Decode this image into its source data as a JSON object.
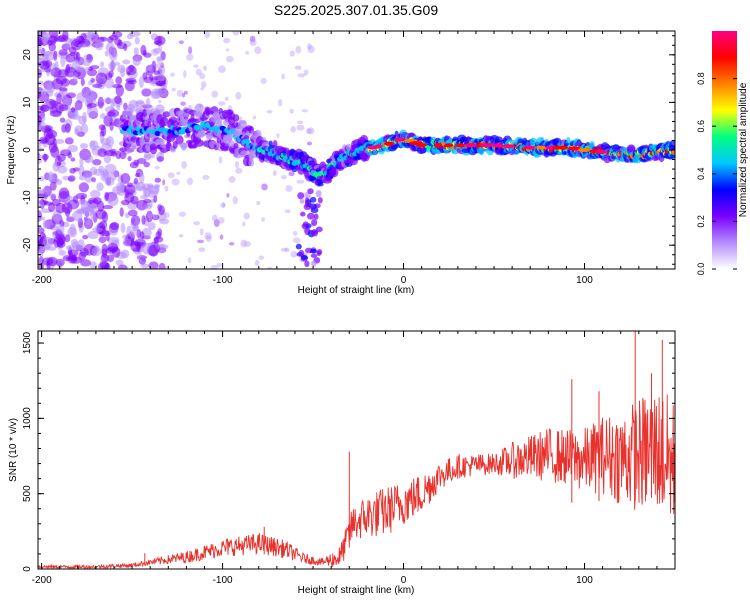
{
  "page": {
    "title": "S225.2025.307.01.35.G09"
  },
  "chart_data": [
    {
      "type": "heatmap",
      "xlabel": "Height of straight line (km)",
      "ylabel": "Frequency (Hz)",
      "xlim": [
        -202,
        150
      ],
      "ylim": [
        -25,
        25
      ],
      "xticks": [
        -200,
        -100,
        0,
        100
      ],
      "yticks": [
        -20,
        -10,
        0,
        10,
        20
      ],
      "colorbar": {
        "label": "Normalized spectral amplitude",
        "range": [
          0,
          1
        ],
        "ticks": [
          "0.0",
          "0.2",
          "0.4",
          "0.6",
          "0.8"
        ],
        "colors": [
          "#ffffff",
          "#b48cff",
          "#7a00ff",
          "#0000ff",
          "#00c8ff",
          "#00ff80",
          "#ffff00",
          "#ff8000",
          "#ff0000",
          "#ff0080"
        ]
      },
      "ridge": {
        "description": "dominant frequency track",
        "points": [
          [
            -150,
            4
          ],
          [
            -130,
            4
          ],
          [
            -110,
            5
          ],
          [
            -95,
            4
          ],
          [
            -85,
            1
          ],
          [
            -70,
            -1
          ],
          [
            -55,
            -3
          ],
          [
            -45,
            -5.5
          ],
          [
            -35,
            -2
          ],
          [
            -25,
            0
          ],
          [
            -10,
            1
          ],
          [
            0,
            2.5
          ],
          [
            10,
            1
          ],
          [
            30,
            1
          ],
          [
            50,
            1
          ],
          [
            70,
            0.5
          ],
          [
            90,
            0.5
          ],
          [
            110,
            -0.5
          ],
          [
            130,
            -1
          ],
          [
            150,
            0
          ]
        ]
      }
    },
    {
      "type": "line",
      "xlabel": "Height of straight line (km)",
      "ylabel": "SNR (10 * v/v)",
      "xlim": [
        -202,
        150
      ],
      "ylim": [
        0,
        1580
      ],
      "xticks": [
        -200,
        -100,
        0,
        100
      ],
      "yticks": [
        0,
        500,
        1000,
        1500
      ],
      "color": "#e8322d",
      "envelope": {
        "x": [
          -202,
          -170,
          -150,
          -140,
          -120,
          -100,
          -80,
          -65,
          -55,
          -45,
          -35,
          -28,
          -20,
          -10,
          0,
          10,
          20,
          30,
          50,
          60,
          70,
          80,
          90,
          100,
          110,
          120,
          130,
          140,
          150
        ],
        "mid": [
          15,
          15,
          25,
          45,
          80,
          140,
          170,
          130,
          70,
          45,
          80,
          300,
          350,
          380,
          440,
          500,
          620,
          680,
          700,
          720,
          740,
          760,
          740,
          720,
          760,
          740,
          760,
          800,
          680
        ],
        "amp": [
          10,
          12,
          15,
          20,
          40,
          60,
          70,
          60,
          35,
          25,
          80,
          120,
          150,
          170,
          150,
          140,
          100,
          80,
          70,
          120,
          150,
          180,
          190,
          220,
          260,
          320,
          380,
          420,
          450
        ]
      },
      "peaks": [
        {
          "x": -143,
          "y": 105
        },
        {
          "x": -77,
          "y": 280
        },
        {
          "x": -30,
          "y": 780
        },
        {
          "x": 93,
          "y": 1260
        },
        {
          "x": 128,
          "y": 1590
        },
        {
          "x": 143,
          "y": 1520
        },
        {
          "x": 108,
          "y": 1180
        },
        {
          "x": 137,
          "y": 1300
        }
      ]
    }
  ]
}
